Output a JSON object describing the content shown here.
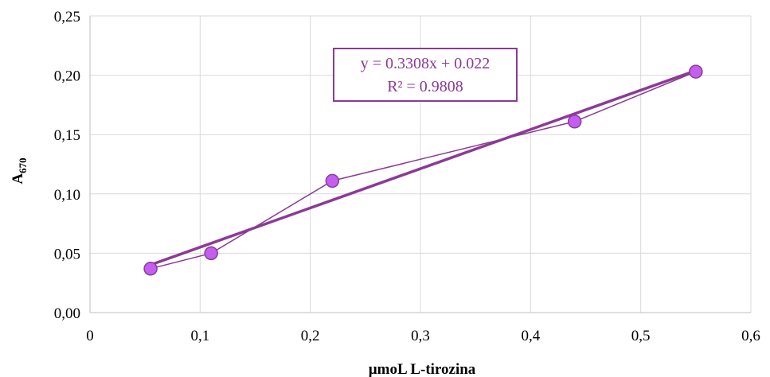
{
  "chart_data": {
    "type": "scatter",
    "xlabel": "µmoL L-tirozina",
    "ylabel_main": "A",
    "ylabel_sub": "670",
    "xlim": [
      0,
      0.6
    ],
    "ylim": [
      0,
      0.25
    ],
    "x_ticks": [
      0,
      0.1,
      0.2,
      0.3,
      0.4,
      0.5,
      0.6
    ],
    "x_tick_labels": [
      "0",
      "0,1",
      "0,2",
      "0,3",
      "0,4",
      "0,5",
      "0,6"
    ],
    "y_ticks": [
      0,
      0.05,
      0.1,
      0.15,
      0.2,
      0.25
    ],
    "y_tick_labels": [
      "0,00",
      "0,05",
      "0,10",
      "0,15",
      "0,20",
      "0,25"
    ],
    "grid": true,
    "series": [
      {
        "x": [
          0.055,
          0.11,
          0.22,
          0.44,
          0.55
        ],
        "y": [
          0.037,
          0.05,
          0.111,
          0.161,
          0.203
        ],
        "connected": true
      }
    ],
    "trendline": {
      "type": "linear",
      "slope": 0.3308,
      "intercept": 0.022,
      "equation": "y = 0.3308x + 0.022",
      "r_squared": "R² = 0.9808"
    },
    "colors": {
      "marker_fill": "#c45ef0",
      "marker_stroke": "#8b3a96",
      "line": "#8b3a96",
      "grid": "#d9d9d9",
      "axis": "#bfbfbf"
    }
  }
}
